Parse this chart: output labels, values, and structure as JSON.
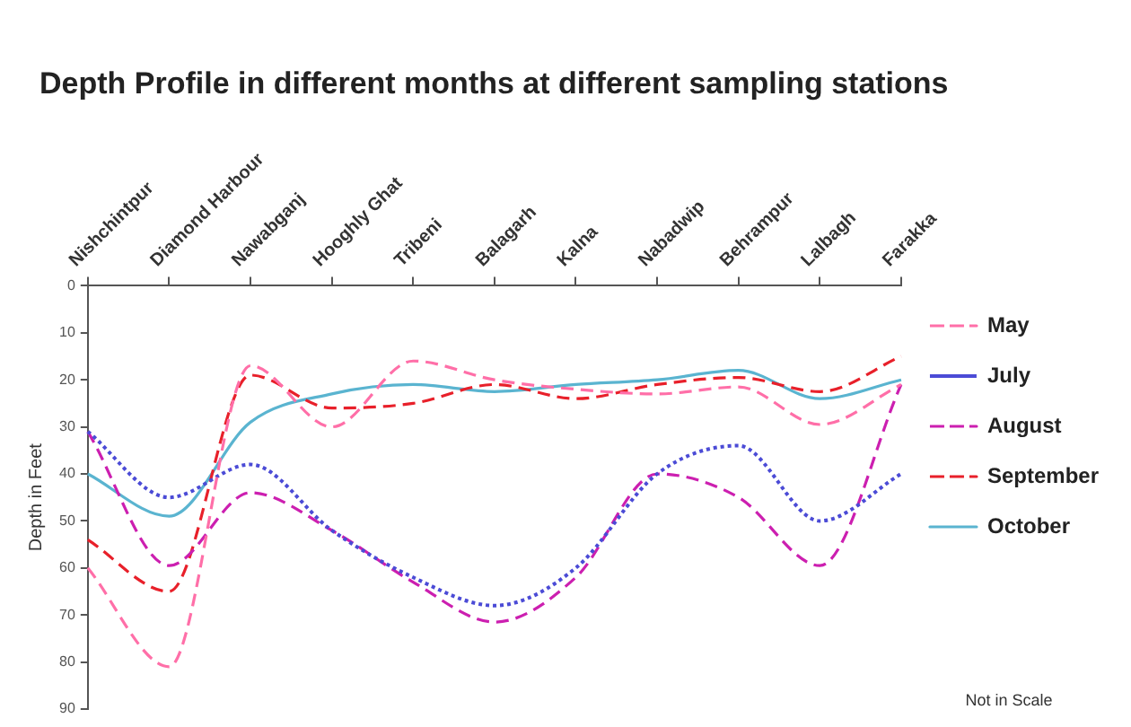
{
  "chart_data": {
    "type": "line",
    "title": "Depth Profile in different months at different sampling stations",
    "ylabel": "Depth in Feet",
    "categories": [
      "Nishchintpur",
      "Diamond Harbour",
      "Nawabganj",
      "Hooghly Ghat",
      "Tribeni",
      "Balagarh",
      "Kalna",
      "Nabadwip",
      "Behrampur",
      "Lalbagh",
      "Farakka"
    ],
    "series": [
      {
        "name": "May",
        "color": "#ff6fa8",
        "line_style": "dashed",
        "values": [
          60,
          81,
          17,
          30,
          16,
          20,
          22,
          23,
          21.5,
          29.5,
          21
        ]
      },
      {
        "name": "July",
        "color": "#4b4bd6",
        "line_style": "dotted",
        "values": [
          31,
          45,
          38,
          52,
          62,
          68,
          60,
          40,
          34,
          50,
          40
        ]
      },
      {
        "name": "August",
        "color": "#cc1fb0",
        "line_style": "dashed",
        "values": [
          31,
          59.5,
          44,
          52,
          63,
          71.5,
          62,
          40,
          45,
          59.5,
          21
        ]
      },
      {
        "name": "September",
        "color": "#e8202a",
        "line_style": "dashed",
        "values": [
          54,
          65,
          19,
          26,
          25,
          21,
          24,
          21,
          19.5,
          22.5,
          15
        ]
      },
      {
        "name": "October",
        "color": "#5ab4d0",
        "line_style": "solid",
        "values": [
          40,
          49,
          29,
          23,
          21,
          22.5,
          21,
          20,
          18,
          24,
          20
        ]
      }
    ],
    "ylim": [
      90,
      0
    ],
    "yticks": [
      0,
      10,
      20,
      30,
      40,
      50,
      60,
      70,
      80,
      90
    ],
    "grid": false,
    "legend": "right",
    "marker": "none",
    "annotations": [
      "Not in Scale"
    ]
  }
}
